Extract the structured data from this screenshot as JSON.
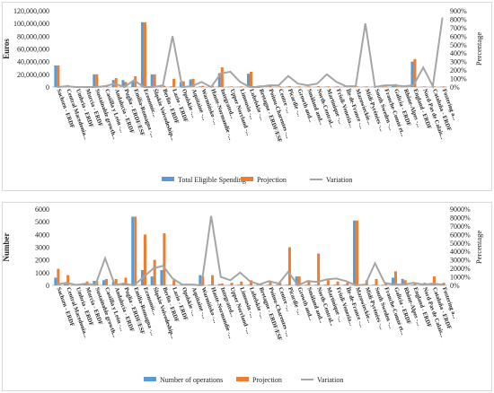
{
  "chart_data": [
    {
      "type": "bar",
      "ylabel": "Euros",
      "y2label": "Percentage",
      "ylim": [
        0,
        120000000
      ],
      "y2lim": [
        0,
        900
      ],
      "yticks": [
        "0",
        "20,000,000",
        "40,000,000",
        "60,000,000",
        "80,000,000",
        "100,000,000",
        "120,000,000"
      ],
      "y2ticks": [
        "0%",
        "100%",
        "200%",
        "300%",
        "400%",
        "500%",
        "600%",
        "700%",
        "800%",
        "900%"
      ],
      "categories": [
        "Sachsen - ERDF",
        "Central Macedonia...",
        "Umbria - ERDF",
        "Murcia - ERDF",
        "Sustainable growth...",
        "Castilla y León -...",
        "Andalucía - ERDF",
        "Puglia - ERDF/ESF",
        "Emilia-Romagna -...",
        "Economic...",
        "Śląskie Voivodeship...",
        "Berlin - ERDF",
        "Lazio - ERDF",
        "Opolskie -...",
        "Aquitaine -...",
        "Warmińsko -...",
        "Haute-Normandie -...",
        "Integrated...",
        "Upper Norrland -...",
        "Limousin -...",
        "Lubelskie -...",
        "Bretagne - ERDF/ESF",
        "Poitou-Charentes -...",
        "Centre -...",
        "Picardie -...",
        "Growth and...",
        "Småland and...",
        "North-Central...",
        "Martinique -...",
        "Friuli-Venezia...",
        "Île-de-France -...",
        "Mazowieckie...",
        "Midi-Pyrénées -...",
        "South Sweden -...",
        "Franche-Comté et...",
        "Galicia - ERDF",
        "Rhône-Alpes -...",
        "England - ERDF",
        "Nord-Pas de Calais...",
        "Cataluña - ERDF",
        "Fostering a..."
      ],
      "series": [
        {
          "name": "Total Eligible Spending",
          "color": "#5b9bd5",
          "values": [
            34000000,
            2000000,
            500000,
            500000,
            20000000,
            2500000,
            11000000,
            11000000,
            10000000,
            102000000,
            20000000,
            500000,
            1000000,
            8000000,
            12000000,
            1000000,
            1000000,
            22000000,
            500000,
            500000,
            21000000,
            2000000,
            500000,
            500000,
            500000,
            500000,
            500000,
            500000,
            500000,
            500000,
            500000,
            500000,
            500000,
            500000,
            500000,
            4000000,
            500000,
            40000000,
            500000,
            500000,
            500000
          ]
        },
        {
          "name": "Projection",
          "color": "#ed7d31",
          "values": [
            34000000,
            3000000,
            500000,
            500000,
            20000000,
            3000000,
            14000000,
            8000000,
            17000000,
            102000000,
            20000000,
            2000000,
            13000000,
            9000000,
            13000000,
            2000000,
            2000000,
            31000000,
            1000000,
            1000000,
            24000000,
            2500000,
            2000000,
            1000000,
            1500000,
            1000000,
            1000000,
            1500000,
            1000000,
            1000000,
            1000000,
            1000000,
            1000000,
            1500000,
            1000000,
            4500000,
            1000000,
            44000000,
            1000000,
            1000000,
            1000000
          ]
        },
        {
          "name": "Variation",
          "color": "#a5a5a5",
          "axis": "right",
          "values": [
            0,
            10,
            0,
            0,
            0,
            10,
            40,
            0,
            80,
            0,
            0,
            20,
            600,
            0,
            10,
            60,
            0,
            160,
            180,
            60,
            0,
            0,
            20,
            20,
            130,
            40,
            20,
            40,
            150,
            60,
            10,
            10,
            750,
            0,
            20,
            20,
            10,
            20,
            230,
            10,
            820
          ]
        }
      ]
    },
    {
      "type": "bar",
      "ylabel": "Number",
      "y2label": "Percentage",
      "ylim": [
        0,
        6000
      ],
      "y2lim": [
        0,
        9000
      ],
      "yticks": [
        "0",
        "1000",
        "2000",
        "3000",
        "4000",
        "5000",
        "6000"
      ],
      "y2ticks": [
        "0%",
        "1000%",
        "2000%",
        "3000%",
        "4000%",
        "5000%",
        "6000%",
        "7000%",
        "8000%",
        "9000%"
      ],
      "categories": [
        "Sachsen - ERDF",
        "Central Macedonia...",
        "Umbria - ERDF",
        "Murcia - ERDF",
        "Sustainable growth...",
        "Castilla y León -...",
        "Andalucía - ERDF",
        "Puglia - ERDF/ESF",
        "Emilia-Romagna -...",
        "Economic...",
        "Śląskie Voivodeship...",
        "Berlin - ERDF",
        "Lazio - ERDF",
        "Opolskie -...",
        "Aquitaine -...",
        "Warmińsko -...",
        "Haute-Normandie -...",
        "Integrated...",
        "Upper Norrland -...",
        "Limousin -...",
        "Lubelskie -...",
        "Bretagne - ERDF/ESF",
        "Poitou-Charentes -...",
        "Centre -...",
        "Picardie -...",
        "Growth and...",
        "Småland and...",
        "North-Central...",
        "Martinique -...",
        "Friuli-Venezia...",
        "Île-de-France -...",
        "Mazowieckie...",
        "Midi-Pyrénées -...",
        "South Sweden -...",
        "Franche-Comté et...",
        "Galicia - ERDF",
        "Rhône-Alpes -...",
        "England - ERDF",
        "Nord-Pas de Calais...",
        "Cataluña - ERDF",
        "Fostering a..."
      ],
      "series": [
        {
          "name": "Number of operations",
          "color": "#5b9bd5",
          "values": [
            600,
            100,
            50,
            100,
            350,
            400,
            300,
            200,
            5400,
            1200,
            700,
            1200,
            30,
            30,
            50,
            800,
            50,
            100,
            30,
            50,
            50,
            50,
            50,
            50,
            50,
            700,
            50,
            50,
            50,
            50,
            50,
            5100,
            50,
            50,
            50,
            600,
            500,
            50,
            50,
            50,
            50
          ]
        },
        {
          "name": "Projection",
          "color": "#ed7d31",
          "values": [
            1300,
            800,
            100,
            300,
            350,
            500,
            500,
            600,
            5400,
            4000,
            2000,
            4100,
            400,
            100,
            100,
            700,
            800,
            150,
            200,
            300,
            400,
            100,
            300,
            200,
            3000,
            700,
            400,
            2500,
            400,
            300,
            200,
            5100,
            400,
            500,
            200,
            1100,
            400,
            200,
            200,
            700,
            200
          ]
        },
        {
          "name": "Variation",
          "color": "#a5a5a5",
          "axis": "right",
          "values": [
            100,
            300,
            50,
            200,
            50,
            3200,
            50,
            200,
            0,
            1000,
            2000,
            2300,
            800,
            100,
            100,
            0,
            8200,
            1000,
            600,
            1500,
            500,
            100,
            500,
            200,
            1600,
            0,
            500,
            400,
            700,
            800,
            500,
            0,
            100,
            2600,
            300,
            100,
            100,
            300,
            100,
            200,
            100
          ]
        }
      ]
    }
  ]
}
